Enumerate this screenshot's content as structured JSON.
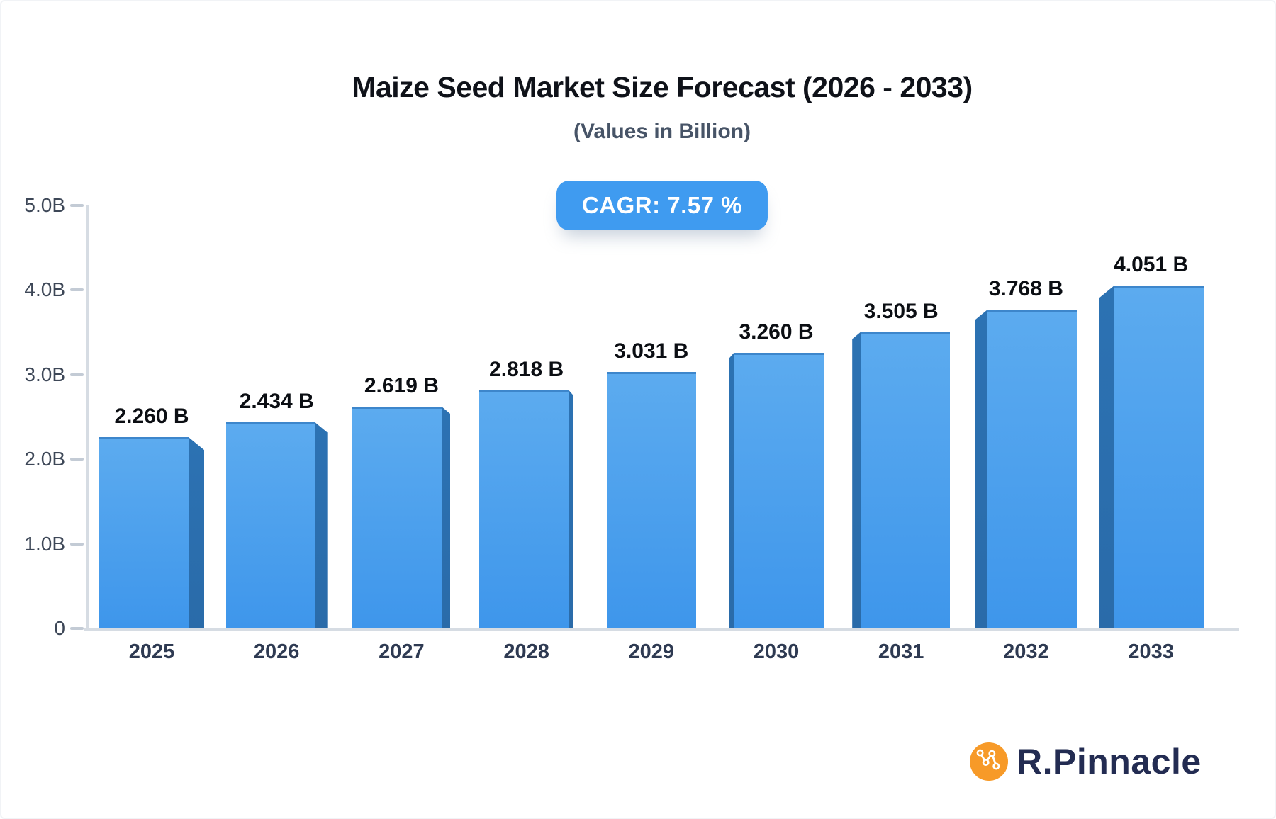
{
  "badge": {
    "label": "CAGR: 7.57 %"
  },
  "logo": {
    "text": "R.Pinnacle",
    "icon": "network-zigzag-icon",
    "circle_color": "#F79A28",
    "text_color": "#232C52"
  },
  "colors": {
    "accent_blue": "#3F9BF0",
    "bar_face_top": "#5CABEF",
    "bar_face_bottom": "#3E96EB",
    "bar_side_dark": "#2C72B3",
    "bar_top_edge": "#3D86CB",
    "axis_line": "#D6DCE3",
    "tick_dash": "#C3CBD5",
    "y_label": "#3D4757",
    "x_label": "#2E3A52",
    "value_label": "#0B0E13",
    "title": "#0F1219",
    "subtitle": "#475467"
  },
  "chart_data": {
    "type": "bar",
    "title": "Maize Seed Market Size Forecast (2026 - 2033)",
    "subtitle": "(Values in Billion)",
    "categories": [
      "2025",
      "2026",
      "2027",
      "2028",
      "2029",
      "2030",
      "2031",
      "2032",
      "2033"
    ],
    "values": [
      2.26,
      2.434,
      2.619,
      2.818,
      3.031,
      3.26,
      3.505,
      3.768,
      4.051
    ],
    "value_labels": [
      "2.260 B",
      "2.434 B",
      "2.619 B",
      "2.818 B",
      "3.031 B",
      "3.260 B",
      "3.505 B",
      "3.768 B",
      "4.051 B"
    ],
    "xlabel": "",
    "ylabel": "",
    "ylim": [
      0,
      5
    ],
    "y_ticks": [
      {
        "value": 5,
        "label": "5.0B"
      },
      {
        "value": 4,
        "label": "4.0B"
      },
      {
        "value": 3,
        "label": "3.0B"
      },
      {
        "value": 2,
        "label": "2.0B"
      },
      {
        "value": 1,
        "label": "1.0B"
      },
      {
        "value": 0,
        "label": "0"
      }
    ],
    "grid": false,
    "legend": false,
    "annotation": "CAGR: 7.57 %",
    "style": "3d-extruded-bars, perspective toward center"
  }
}
